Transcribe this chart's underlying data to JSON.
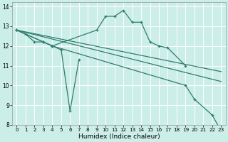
{
  "title": "",
  "xlabel": "Humidex (Indice chaleur)",
  "bg_color": "#cceee8",
  "grid_color": "#ffffff",
  "line_color": "#2e7d6e",
  "xlim": [
    -0.5,
    23.5
  ],
  "ylim": [
    8,
    14.2
  ],
  "yticks": [
    8,
    9,
    10,
    11,
    12,
    13,
    14
  ],
  "xticks": [
    0,
    1,
    2,
    3,
    4,
    5,
    6,
    7,
    8,
    9,
    10,
    11,
    12,
    13,
    14,
    15,
    16,
    17,
    18,
    19,
    20,
    21,
    22,
    23
  ],
  "series": [
    {
      "x": [
        0,
        1,
        2,
        3,
        4,
        5,
        6,
        7
      ],
      "y": [
        12.8,
        12.6,
        12.2,
        12.2,
        12.0,
        11.8,
        8.7,
        11.3
      ],
      "marker": true
    },
    {
      "x": [
        0,
        3,
        4,
        9,
        10,
        11,
        12,
        13,
        14,
        15,
        16,
        17,
        19
      ],
      "y": [
        12.8,
        12.2,
        12.0,
        12.8,
        13.5,
        13.5,
        13.8,
        13.2,
        13.2,
        12.2,
        12.0,
        11.9,
        11.0
      ],
      "marker": true
    },
    {
      "x": [
        0,
        4,
        19,
        20,
        22,
        23
      ],
      "y": [
        12.8,
        12.0,
        10.0,
        9.3,
        8.5,
        7.7
      ],
      "marker": true
    },
    {
      "x": [
        0,
        23
      ],
      "y": [
        12.8,
        10.7
      ],
      "marker": false
    },
    {
      "x": [
        0,
        23
      ],
      "y": [
        12.8,
        10.2
      ],
      "marker": false
    }
  ]
}
